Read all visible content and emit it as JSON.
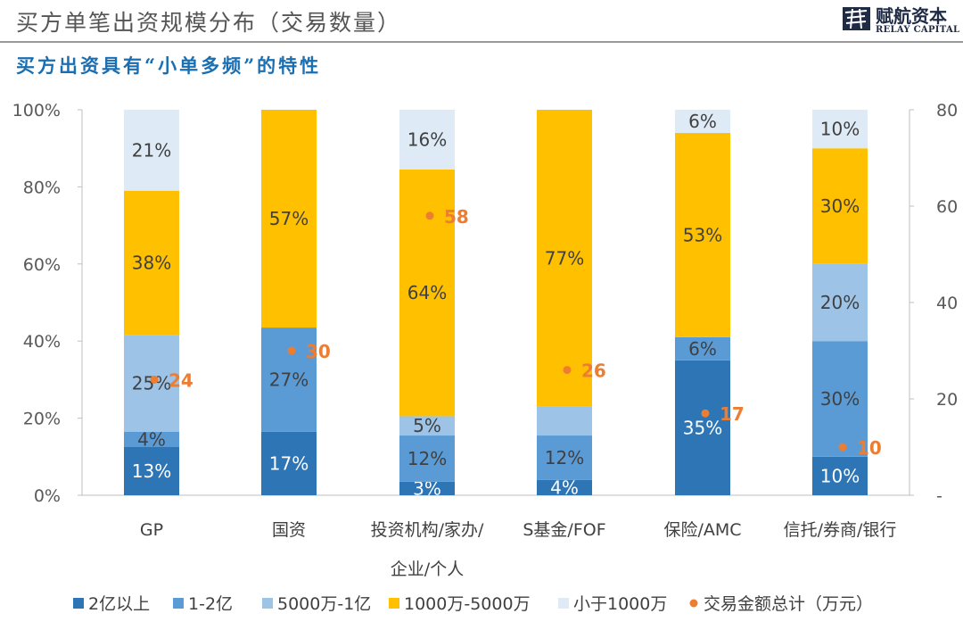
{
  "header": {
    "title": "买方单笔出资规模分布（交易数量）",
    "subtitle": "买方出资具有“小单多频”的特性",
    "logo_cn": "赋航资本",
    "logo_en": "RELAY CAPITAL"
  },
  "colors": {
    "series": [
      "#2e75b6",
      "#5b9bd5",
      "#9dc3e6",
      "#ffc000",
      "#deebf7"
    ],
    "marker": "#ed7d31",
    "axis": "#bfbfbf"
  },
  "chart_data": {
    "type": "bar",
    "stacked": true,
    "categories": [
      "GP",
      "国资",
      "投资机构/家办/企业/个人",
      "S基金/FOF",
      "保险/AMC",
      "信托/券商/银行"
    ],
    "category_lines": [
      [
        "GP"
      ],
      [
        "国资"
      ],
      [
        "投资机构/家办/",
        "企业/个人"
      ],
      [
        "S基金/FOF"
      ],
      [
        "保险/AMC"
      ],
      [
        "信托/券商/银行"
      ]
    ],
    "series": [
      {
        "name": "2亿以上",
        "values": [
          12.5,
          16.5,
          3.5,
          4,
          35,
          10
        ],
        "labels": [
          "13%",
          "17%",
          "3%",
          "4%",
          "35%",
          "10%"
        ]
      },
      {
        "name": "1-2亿",
        "values": [
          4,
          27,
          12,
          11.5,
          6,
          30
        ],
        "labels": [
          "4%",
          "27%",
          "12%",
          "12%",
          "6%",
          "30%"
        ]
      },
      {
        "name": "5000万-1亿",
        "values": [
          25,
          0,
          5,
          7.5,
          0,
          20
        ],
        "labels": [
          "25%",
          "",
          "5%",
          "",
          "",
          "20%"
        ]
      },
      {
        "name": "1000万-5000万",
        "values": [
          37.5,
          56.5,
          64,
          77,
          53,
          30
        ],
        "labels": [
          "38%",
          "57%",
          "64%",
          "77%",
          "53%",
          "30%"
        ]
      },
      {
        "name": "小于1000万",
        "values": [
          21,
          0,
          15.5,
          0,
          6,
          10
        ],
        "labels": [
          "21%",
          "",
          "16%",
          "",
          "6%",
          "10%"
        ]
      }
    ],
    "line_series": {
      "name": "交易金额总计（万元）",
      "values": [
        24,
        30,
        58,
        26,
        17,
        10
      ],
      "labels": [
        "24",
        "30",
        "58",
        "26",
        "17",
        "10"
      ],
      "axis": "right"
    },
    "y_left": {
      "min": 0,
      "max": 100,
      "ticks": [
        "0%",
        "20%",
        "40%",
        "60%",
        "80%",
        "100%"
      ]
    },
    "y_right": {
      "min": 0,
      "max": 80,
      "ticks": [
        "-",
        "20",
        "40",
        "60",
        "80"
      ]
    },
    "legend_position": "bottom"
  }
}
